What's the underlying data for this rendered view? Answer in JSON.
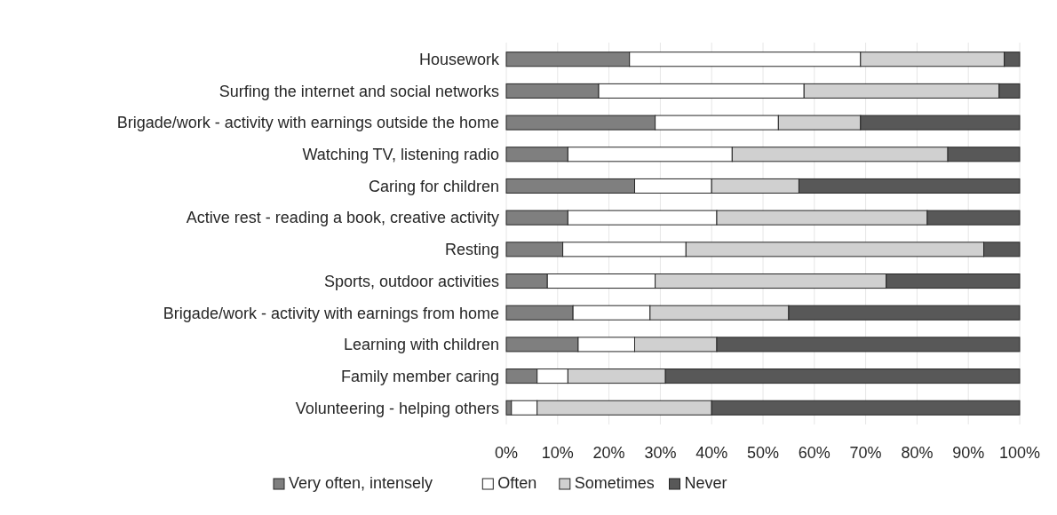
{
  "chart_data": {
    "type": "bar",
    "orientation": "horizontal",
    "stacked": true,
    "categories": [
      "Housework",
      "Surfing the internet and social networks",
      "Brigade/work - activity with earnings outside the home",
      "Watching TV, listening radio",
      "Caring for children",
      "Active rest - reading a book, creative activity",
      "Resting",
      "Sports, outdoor activities",
      "Brigade/work - activity with earnings from home",
      "Learning with children",
      "Family member caring",
      "Volunteering - helping others"
    ],
    "series": [
      {
        "name": "Very often, intensely",
        "color": "#7f7f7f",
        "values": [
          24,
          18,
          29,
          12,
          25,
          12,
          11,
          8,
          13,
          14,
          6,
          1
        ]
      },
      {
        "name": "Often",
        "color": "#ffffff",
        "values": [
          45,
          40,
          24,
          32,
          15,
          29,
          24,
          21,
          15,
          11,
          6,
          5
        ]
      },
      {
        "name": "Sometimes",
        "color": "#d0d0d0",
        "values": [
          28,
          38,
          16,
          42,
          17,
          41,
          58,
          45,
          27,
          16,
          19,
          34
        ]
      },
      {
        "name": "Never",
        "color": "#585858",
        "values": [
          3,
          4,
          31,
          14,
          43,
          18,
          7,
          26,
          45,
          59,
          69,
          60
        ]
      }
    ],
    "xlim": [
      0,
      100
    ],
    "xticks": [
      {
        "value": 0,
        "label": "0%"
      },
      {
        "value": 10,
        "label": "10%"
      },
      {
        "value": 20,
        "label": "20%"
      },
      {
        "value": 30,
        "label": "30%"
      },
      {
        "value": 40,
        "label": "40%"
      },
      {
        "value": 50,
        "label": "50%"
      },
      {
        "value": 60,
        "label": "60%"
      },
      {
        "value": 70,
        "label": "70%"
      },
      {
        "value": 80,
        "label": "80%"
      },
      {
        "value": 90,
        "label": "90%"
      },
      {
        "value": 100,
        "label": "100%"
      }
    ],
    "grid": "x",
    "legend": "bottom"
  }
}
